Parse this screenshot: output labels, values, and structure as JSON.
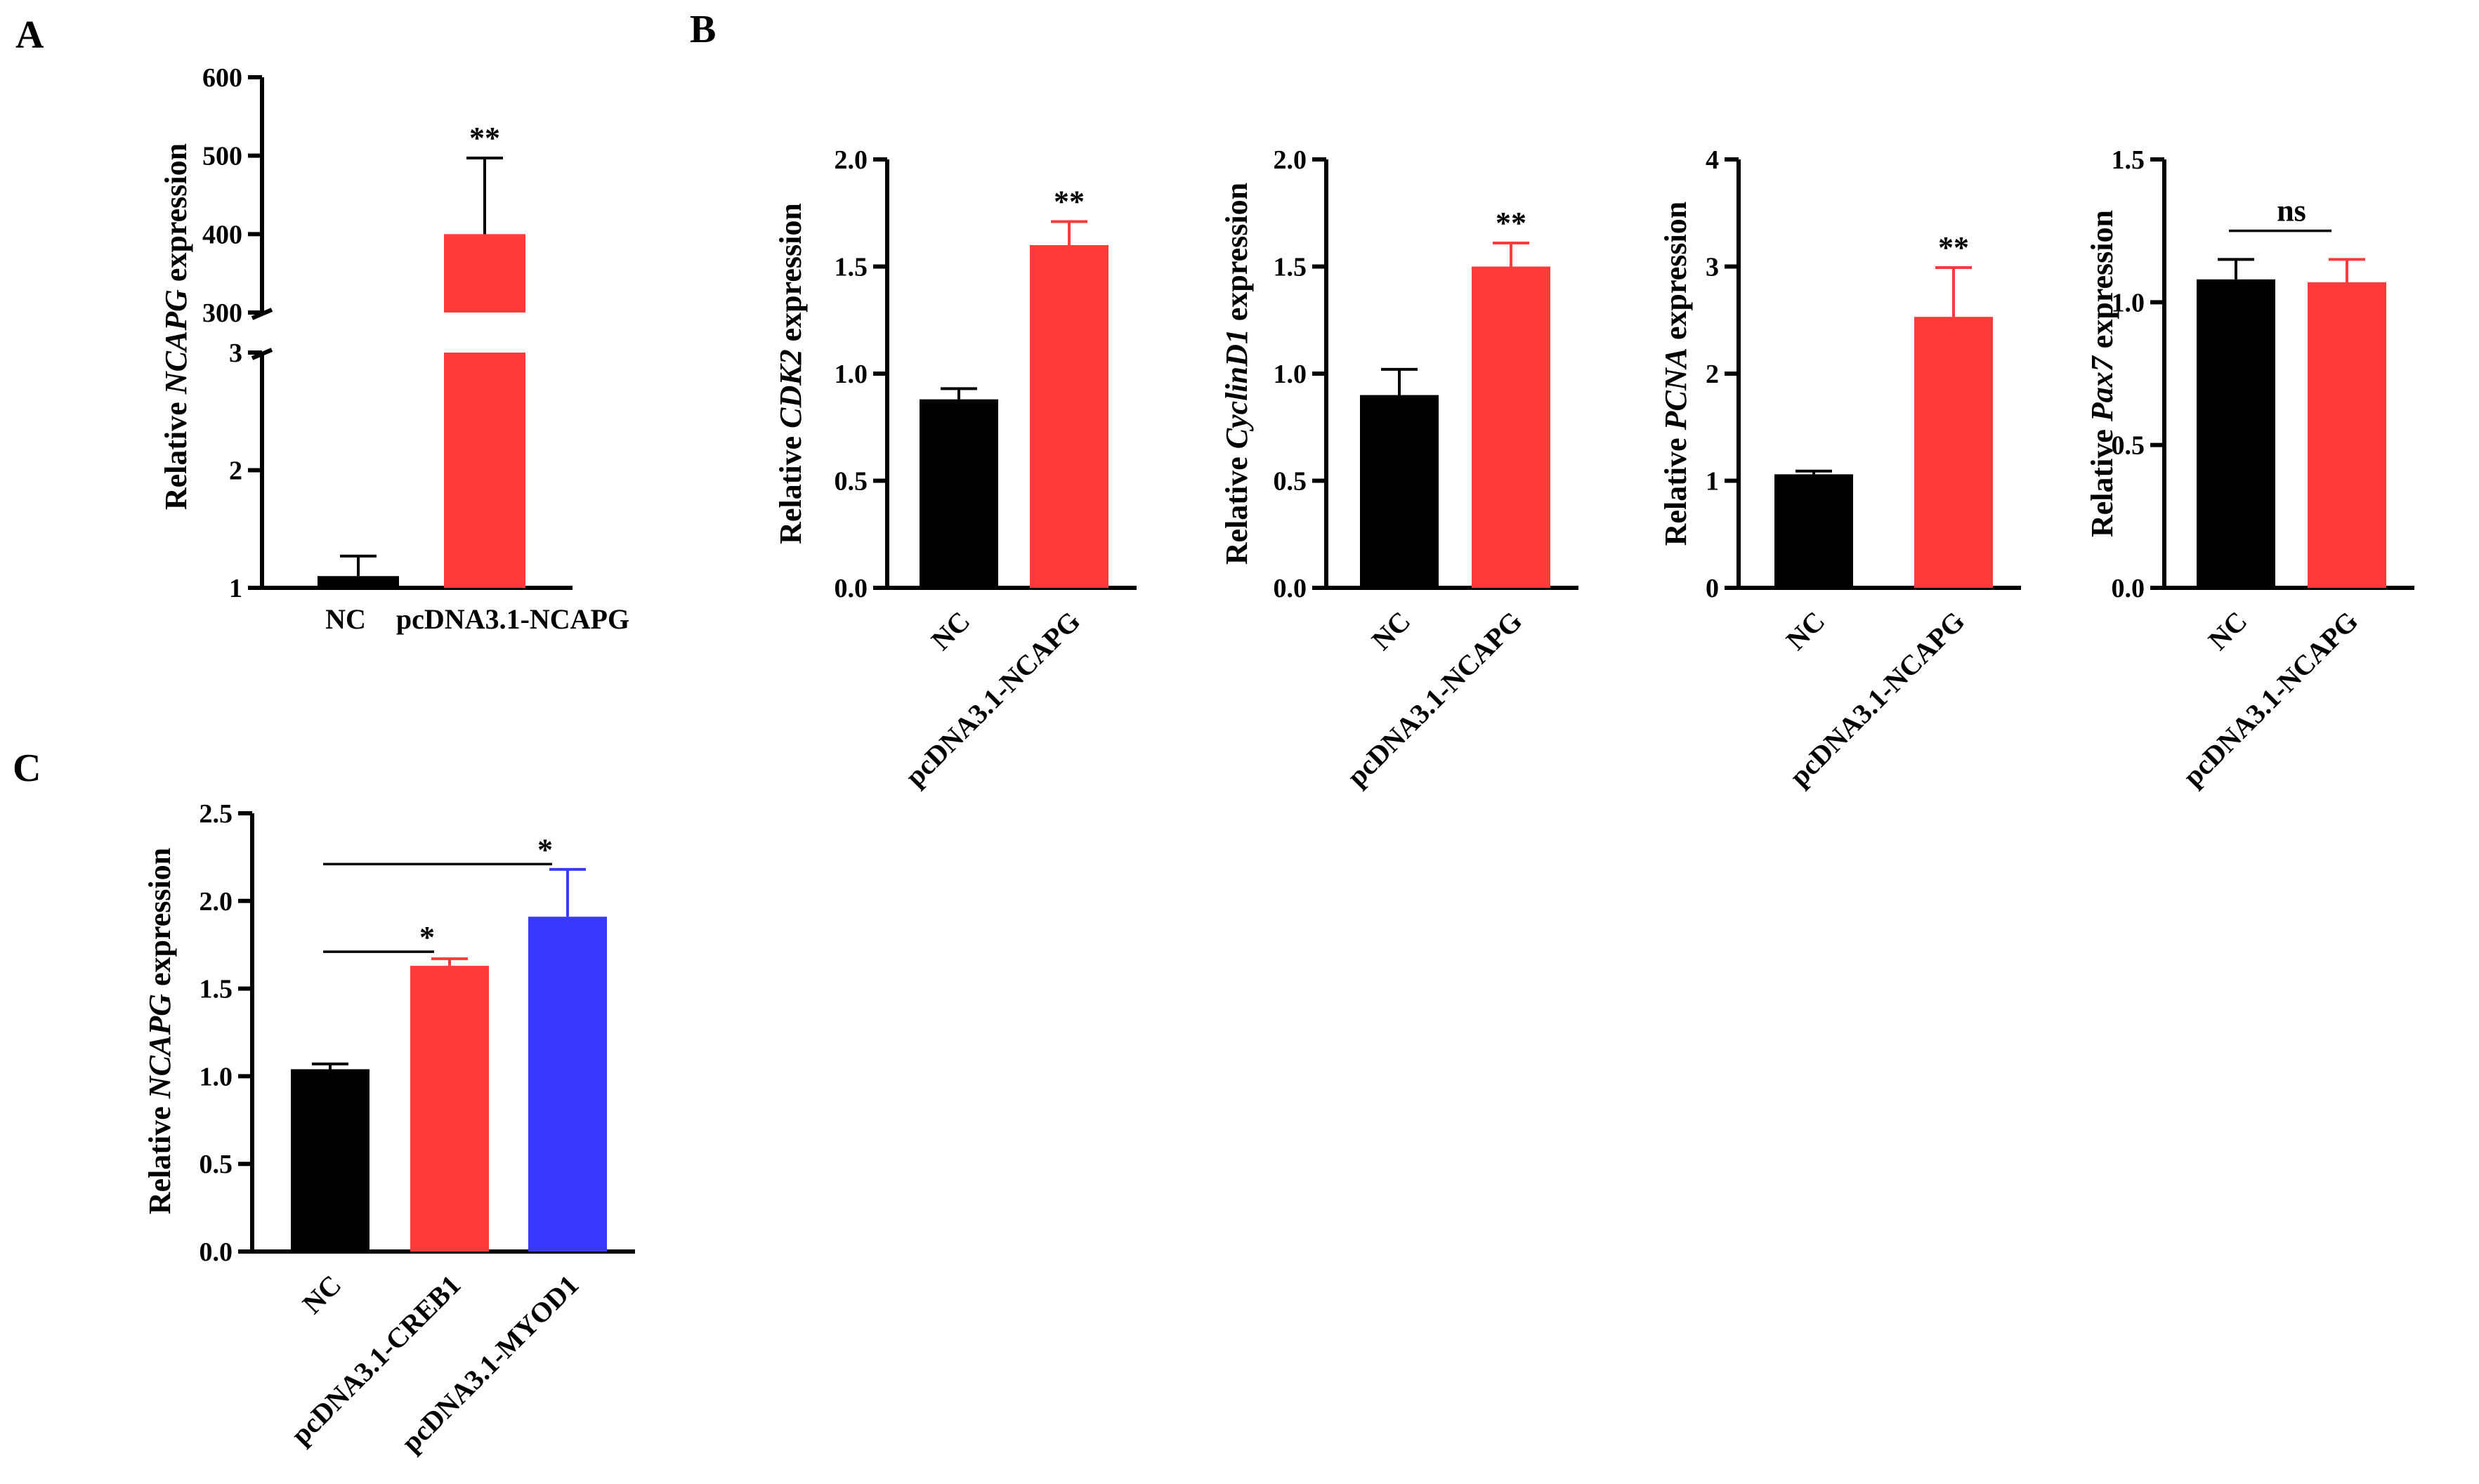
{
  "panel_labels": {
    "a": "A",
    "b": "B",
    "c": "C"
  },
  "colors": {
    "nc": "#000000",
    "ncapg": "#ff3b3b",
    "creb1": "#ff3b3b",
    "myod1": "#3a3aff"
  },
  "chart_data": [
    {
      "id": "A",
      "type": "bar",
      "broken_axis": true,
      "ylabel_pre": "Relative ",
      "ylabel_gene": "NCAPG",
      "ylabel_post": " expression",
      "categories": [
        "NC",
        "pcDNA3.1-NCAPG"
      ],
      "values": [
        1.1,
        400
      ],
      "errors": [
        0.17,
        97
      ],
      "colors": [
        "#000000",
        "#ff3b3b"
      ],
      "lower_segment": {
        "ylim": [
          1,
          3
        ],
        "ticks": [
          "1",
          "2",
          "3"
        ]
      },
      "upper_segment": {
        "ylim": [
          300,
          600
        ],
        "ticks": [
          "300",
          "400",
          "500",
          "600"
        ]
      },
      "significance": [
        {
          "bar": 1,
          "label": "**"
        }
      ]
    },
    {
      "id": "B1",
      "type": "bar",
      "ylabel_pre": "Relative ",
      "ylabel_gene": "CDK2",
      "ylabel_post": " expression",
      "categories": [
        "NC",
        "pcDNA3.1-NCAPG"
      ],
      "values": [
        0.88,
        1.6
      ],
      "errors": [
        0.05,
        0.11
      ],
      "colors": [
        "#000000",
        "#ff3b3b"
      ],
      "ylim": [
        0,
        2.0
      ],
      "ticks": [
        "0.0",
        "0.5",
        "1.0",
        "1.5",
        "2.0"
      ],
      "significance": [
        {
          "bar": 1,
          "label": "**"
        }
      ]
    },
    {
      "id": "B2",
      "type": "bar",
      "ylabel_pre": "Relative ",
      "ylabel_gene": "CyclinD1",
      "ylabel_post": " expression",
      "categories": [
        "NC",
        "pcDNA3.1-NCAPG"
      ],
      "values": [
        0.9,
        1.5
      ],
      "errors": [
        0.12,
        0.11
      ],
      "colors": [
        "#000000",
        "#ff3b3b"
      ],
      "ylim": [
        0,
        2.0
      ],
      "ticks": [
        "0.0",
        "0.5",
        "1.0",
        "1.5",
        "2.0"
      ],
      "significance": [
        {
          "bar": 1,
          "label": "**"
        }
      ]
    },
    {
      "id": "B3",
      "type": "bar",
      "ylabel_pre": "Relative ",
      "ylabel_gene": "PCNA",
      "ylabel_post": " expression",
      "categories": [
        "NC",
        "pcDNA3.1-NCAPG"
      ],
      "values": [
        1.06,
        2.53
      ],
      "errors": [
        0.03,
        0.46
      ],
      "colors": [
        "#000000",
        "#ff3b3b"
      ],
      "ylim": [
        0,
        4
      ],
      "ticks": [
        "0",
        "1",
        "2",
        "3",
        "4"
      ],
      "significance": [
        {
          "bar": 1,
          "label": "**"
        }
      ]
    },
    {
      "id": "B4",
      "type": "bar",
      "ylabel_pre": "Relative ",
      "ylabel_gene": "Pax7",
      "ylabel_post": " expression",
      "categories": [
        "NC",
        "pcDNA3.1-NCAPG"
      ],
      "values": [
        1.08,
        1.07
      ],
      "errors": [
        0.07,
        0.08
      ],
      "colors": [
        "#000000",
        "#ff3b3b"
      ],
      "ylim": [
        0,
        1.5
      ],
      "ticks": [
        "0.0",
        "0.5",
        "1.0",
        "1.5"
      ],
      "significance": [
        {
          "from": 0,
          "to": 1,
          "y": 1.25,
          "label": "ns"
        }
      ]
    },
    {
      "id": "C",
      "type": "bar",
      "ylabel_pre": "Relative ",
      "ylabel_gene": "NCAPG",
      "ylabel_post": " expression",
      "categories": [
        "NC",
        "pcDNA3.1-CREB1",
        "pcDNA3.1-MYOD1"
      ],
      "values": [
        1.04,
        1.63,
        1.91
      ],
      "errors": [
        0.03,
        0.04,
        0.27
      ],
      "colors": [
        "#000000",
        "#ff3b3b",
        "#3a3aff"
      ],
      "ylim": [
        0,
        2.5
      ],
      "ticks": [
        "0.0",
        "0.5",
        "1.0",
        "1.5",
        "2.0",
        "2.5"
      ],
      "significance": [
        {
          "from": 0,
          "to": 1,
          "y": 1.71,
          "label": "*"
        },
        {
          "from": 0,
          "to": 2,
          "y": 2.21,
          "label": "*"
        }
      ]
    }
  ]
}
